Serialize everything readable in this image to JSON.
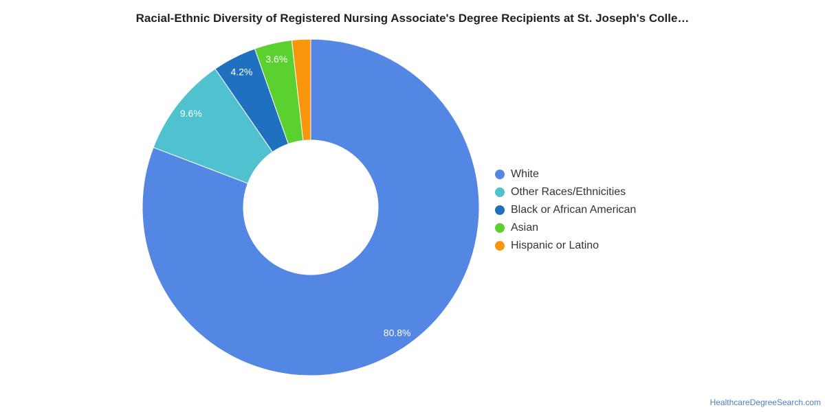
{
  "title": "Racial-Ethnic Diversity of Registered Nursing Associate's Degree Recipients at St. Joseph's Colle…",
  "source_label": "HealthcareDegreeSearch.com",
  "chart_data": {
    "type": "pie",
    "donut": true,
    "legend_position": "right",
    "slices": [
      {
        "label": "White",
        "value": 80.8,
        "color": "#5486e3",
        "data_label": "80.8%"
      },
      {
        "label": "Other Races/Ethnicities",
        "value": 9.6,
        "color": "#50c1cf",
        "data_label": "9.6%"
      },
      {
        "label": "Black or African American",
        "value": 4.2,
        "color": "#2070c0",
        "data_label": "4.2%"
      },
      {
        "label": "Asian",
        "value": 3.6,
        "color": "#5bd130",
        "data_label": "3.6%"
      },
      {
        "label": "Hispanic or Latino",
        "value": 1.8,
        "color": "#f8960e",
        "data_label": ""
      }
    ]
  }
}
